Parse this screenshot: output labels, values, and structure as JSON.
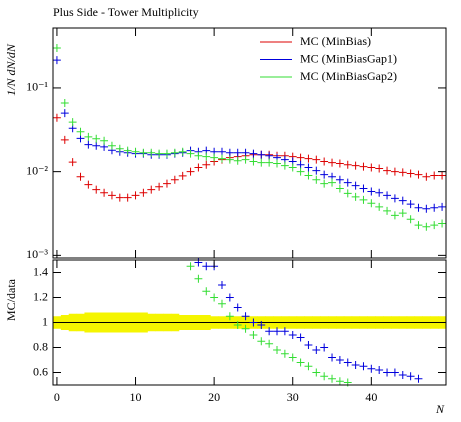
{
  "chart_data": [
    {
      "type": "scatter",
      "title": "Plus Side - Tower Multiplicity",
      "ylabel": "1/N dN/dN",
      "log_y": true,
      "xlim": [
        -0.5,
        49.5
      ],
      "ylim": [
        0.00093,
        0.52
      ],
      "yticks": [
        {
          "value": 0.001,
          "label": "10⁻³"
        },
        {
          "value": 0.01,
          "label": "10⁻²"
        },
        {
          "value": 0.1,
          "label": "10⁻¹"
        }
      ],
      "legend": "top-right",
      "x": [
        0,
        1,
        2,
        3,
        4,
        5,
        6,
        7,
        8,
        9,
        10,
        11,
        12,
        13,
        14,
        15,
        16,
        17,
        18,
        19,
        20,
        21,
        22,
        23,
        24,
        25,
        26,
        27,
        28,
        29,
        30,
        31,
        32,
        33,
        34,
        35,
        36,
        37,
        38,
        39,
        40,
        41,
        42,
        43,
        44,
        45,
        46,
        47,
        48,
        49
      ],
      "series": [
        {
          "name": "MC (MinBias)",
          "color": "#dd0000",
          "values": [
            0.044,
            0.024,
            0.013,
            0.0087,
            0.007,
            0.0061,
            0.0056,
            0.0052,
            0.0049,
            0.0049,
            0.0052,
            0.0056,
            0.0061,
            0.0066,
            0.0072,
            0.008,
            0.0089,
            0.01,
            0.0112,
            0.0121,
            0.0132,
            0.0139,
            0.0147,
            0.0151,
            0.0155,
            0.0159,
            0.0159,
            0.0159,
            0.0155,
            0.0155,
            0.0151,
            0.0147,
            0.0143,
            0.0139,
            0.0132,
            0.0128,
            0.0125,
            0.0121,
            0.0118,
            0.0115,
            0.0112,
            0.0109,
            0.0103,
            0.01,
            0.0098,
            0.0095,
            0.0092,
            0.0087,
            0.009,
            0.009
          ]
        },
        {
          "name": "MC (MinBiasGap1)",
          "color": "#0000dd",
          "values": [
            0.215,
            0.05,
            0.033,
            0.025,
            0.021,
            0.0204,
            0.0198,
            0.018,
            0.0173,
            0.0168,
            0.0164,
            0.0164,
            0.0159,
            0.0159,
            0.0159,
            0.0164,
            0.0168,
            0.0178,
            0.0173,
            0.0178,
            0.0173,
            0.0173,
            0.0168,
            0.0168,
            0.0168,
            0.0164,
            0.0159,
            0.0155,
            0.0147,
            0.0139,
            0.0132,
            0.0121,
            0.0112,
            0.0103,
            0.0092,
            0.0087,
            0.008,
            0.0074,
            0.0068,
            0.0063,
            0.0058,
            0.0056,
            0.0052,
            0.0048,
            0.0045,
            0.0041,
            0.0037,
            0.0036,
            0.0037,
            0.0038
          ]
        },
        {
          "name": "MC (MinBiasGap2)",
          "color": "#33dd33",
          "values": [
            0.3,
            0.066,
            0.039,
            0.03,
            0.026,
            0.0247,
            0.0234,
            0.0204,
            0.0188,
            0.0178,
            0.0173,
            0.0168,
            0.0168,
            0.0164,
            0.0164,
            0.0168,
            0.0173,
            0.0164,
            0.0155,
            0.0151,
            0.0147,
            0.0143,
            0.0139,
            0.0135,
            0.0139,
            0.0132,
            0.0128,
            0.0128,
            0.0125,
            0.0118,
            0.0112,
            0.01,
            0.009,
            0.008,
            0.0072,
            0.0074,
            0.0063,
            0.0055,
            0.005,
            0.0046,
            0.0042,
            0.0038,
            0.0034,
            0.003,
            0.0032,
            0.0027,
            0.0023,
            0.0022,
            0.0023,
            0.0024
          ]
        }
      ]
    },
    {
      "type": "scatter",
      "ylabel": "MC/data",
      "xlabel": "N",
      "xlim": [
        -0.5,
        49.5
      ],
      "ylim": [
        0.5,
        1.5
      ],
      "xticks": [
        0,
        10,
        20,
        30,
        40
      ],
      "yticks": [
        0.6,
        0.8,
        1,
        1.2,
        1.4
      ],
      "hline": 1,
      "band_color": "#f5f500",
      "band_lower": [
        0.95,
        0.94,
        0.93,
        0.93,
        0.92,
        0.92,
        0.92,
        0.92,
        0.92,
        0.92,
        0.92,
        0.92,
        0.93,
        0.93,
        0.93,
        0.93,
        0.94,
        0.94,
        0.94,
        0.94,
        0.95,
        0.95,
        0.95,
        0.95,
        0.95,
        0.95,
        0.95,
        0.95,
        0.95,
        0.95,
        0.95,
        0.95,
        0.95,
        0.95,
        0.95,
        0.95,
        0.95,
        0.95,
        0.95,
        0.95,
        0.95,
        0.95,
        0.95,
        0.95,
        0.95,
        0.95,
        0.95,
        0.95,
        0.95,
        0.95
      ],
      "band_upper": [
        1.05,
        1.06,
        1.07,
        1.07,
        1.08,
        1.08,
        1.08,
        1.08,
        1.08,
        1.08,
        1.08,
        1.08,
        1.07,
        1.07,
        1.07,
        1.07,
        1.06,
        1.06,
        1.06,
        1.06,
        1.05,
        1.05,
        1.05,
        1.05,
        1.05,
        1.05,
        1.05,
        1.05,
        1.05,
        1.05,
        1.05,
        1.05,
        1.05,
        1.05,
        1.05,
        1.05,
        1.05,
        1.05,
        1.05,
        1.05,
        1.05,
        1.05,
        1.05,
        1.05,
        1.05,
        1.05,
        1.05,
        1.05,
        1.05,
        1.05
      ],
      "series": [
        {
          "name": "MC (MinBiasGap1)",
          "color": "#0000dd",
          "values": [
            null,
            null,
            null,
            null,
            null,
            null,
            null,
            null,
            null,
            null,
            null,
            null,
            null,
            null,
            null,
            null,
            null,
            null,
            1.48,
            1.45,
            1.45,
            1.3,
            1.2,
            1.12,
            1.05,
            1.0,
            0.98,
            0.93,
            0.93,
            0.93,
            0.9,
            0.88,
            0.82,
            0.78,
            0.8,
            0.72,
            0.7,
            0.68,
            0.66,
            0.65,
            0.63,
            0.62,
            0.6,
            0.6,
            0.58,
            0.57,
            0.55,
            null,
            null,
            null
          ]
        },
        {
          "name": "MC (MinBiasGap2)",
          "color": "#33dd33",
          "values": [
            null,
            null,
            null,
            null,
            null,
            null,
            null,
            null,
            null,
            null,
            null,
            null,
            null,
            null,
            null,
            null,
            null,
            1.45,
            1.35,
            1.25,
            1.2,
            1.15,
            1.05,
            0.98,
            0.95,
            0.9,
            0.85,
            0.83,
            0.78,
            0.75,
            0.72,
            0.68,
            0.65,
            0.6,
            0.57,
            0.55,
            0.53,
            0.52,
            null,
            null,
            null,
            null,
            null,
            null,
            null,
            null,
            null,
            null,
            null,
            null
          ]
        }
      ]
    }
  ]
}
